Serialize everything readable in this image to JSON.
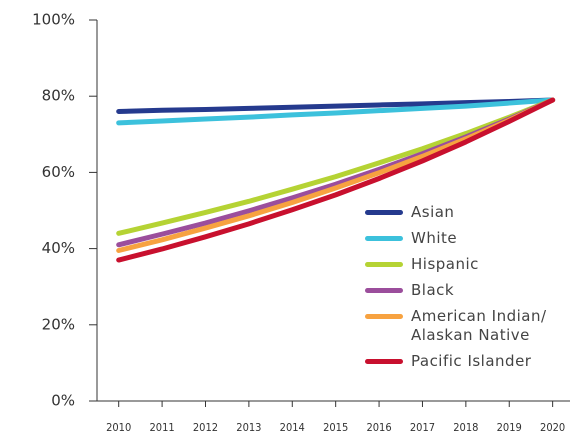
{
  "chart_data": {
    "type": "line",
    "x": [
      2010,
      2011,
      2012,
      2013,
      2014,
      2015,
      2016,
      2017,
      2018,
      2019,
      2020
    ],
    "xlim": [
      2009.5,
      2020.4
    ],
    "ylim": [
      0,
      100
    ],
    "yticks": [
      {
        "value": 0,
        "label": "0%"
      },
      {
        "value": 20,
        "label": "20%"
      },
      {
        "value": 40,
        "label": "40%"
      },
      {
        "value": 60,
        "label": "60%"
      },
      {
        "value": 80,
        "label": "80%"
      },
      {
        "value": 100,
        "label": "100%"
      }
    ],
    "legend": "lower right",
    "series": [
      {
        "name": "Asian",
        "color": "#253a8e",
        "values": [
          76,
          76.3,
          76.5,
          76.8,
          77.1,
          77.4,
          77.7,
          78,
          78.3,
          78.6,
          79
        ]
      },
      {
        "name": "White",
        "color": "#3cc1dc",
        "values": [
          73,
          73.5,
          74,
          74.5,
          75.1,
          75.6,
          76.2,
          76.8,
          77.4,
          78.2,
          79
        ]
      },
      {
        "name": "Hispanic",
        "color": "#b5d334",
        "values": [
          44,
          46.7,
          49.5,
          52.4,
          55.6,
          58.9,
          62.5,
          66.2,
          70.2,
          74.5,
          79
        ]
      },
      {
        "name": "Black",
        "color": "#9b4e9c",
        "values": [
          41,
          43.8,
          46.7,
          49.9,
          53.3,
          56.9,
          60.8,
          64.9,
          69.3,
          74,
          79
        ]
      },
      {
        "name": "American Indian/ Alaskan Native",
        "color": "#f7a240",
        "values": [
          39.5,
          42.3,
          45.4,
          48.6,
          52.1,
          55.9,
          59.9,
          64.2,
          68.8,
          73.7,
          79
        ]
      },
      {
        "name": "Pacific Islander",
        "color": "#c8102e",
        "values": [
          37,
          39.9,
          43.1,
          46.5,
          50.2,
          54.1,
          58.4,
          63,
          68,
          73.4,
          79
        ]
      }
    ]
  }
}
